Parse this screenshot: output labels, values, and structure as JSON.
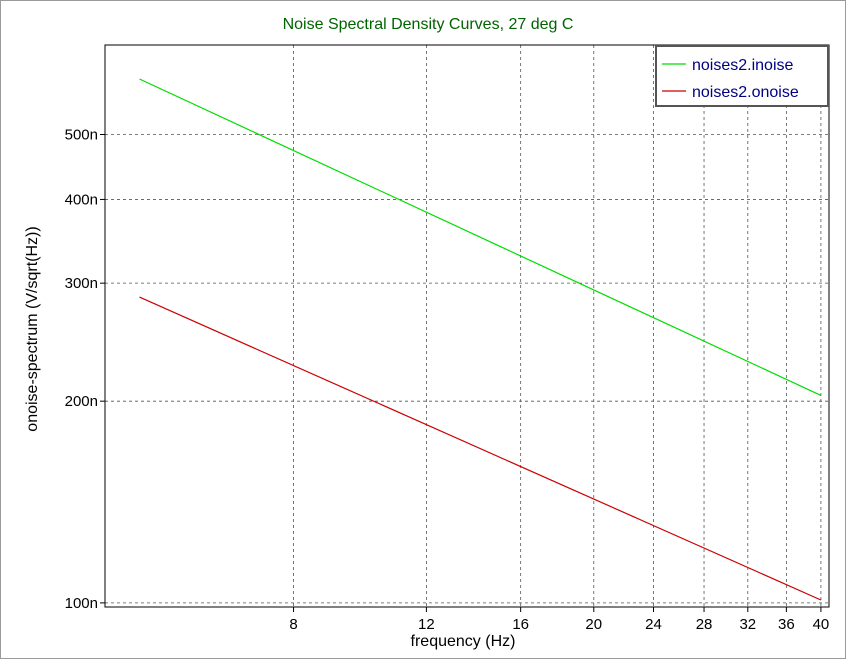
{
  "chart_data": {
    "type": "line",
    "title": "Noise Spectral Density Curves, 27 deg C",
    "xlabel": "frequency (Hz)",
    "ylabel": "onoise-spectrum (V/sqrt(Hz))",
    "x_scale": "log",
    "y_scale": "log",
    "xlim": [
      4.5,
      41
    ],
    "ylim": [
      9.86e-08,
      6.8e-07
    ],
    "x_ticks": [
      {
        "value": 8,
        "label": "8"
      },
      {
        "value": 12,
        "label": "12"
      },
      {
        "value": 16,
        "label": "16"
      },
      {
        "value": 20,
        "label": "20"
      },
      {
        "value": 24,
        "label": "24"
      },
      {
        "value": 28,
        "label": "28"
      },
      {
        "value": 32,
        "label": "32"
      },
      {
        "value": 36,
        "label": "36"
      },
      {
        "value": 40,
        "label": "40"
      }
    ],
    "y_ticks": [
      {
        "value": 1e-07,
        "label": "100n"
      },
      {
        "value": 2e-07,
        "label": "200n"
      },
      {
        "value": 3e-07,
        "label": "300n"
      },
      {
        "value": 4e-07,
        "label": "400n"
      },
      {
        "value": 5e-07,
        "label": "500n"
      }
    ],
    "grid": true,
    "legend_position": "top-right",
    "series": [
      {
        "name": "noises2.inoise",
        "color": "#00dd00",
        "x": [
          5,
          40
        ],
        "y": [
          6.05e-07,
          2.04e-07
        ]
      },
      {
        "name": "noises2.onoise",
        "color": "#cc0000",
        "x": [
          5,
          40
        ],
        "y": [
          2.86e-07,
          1.01e-07
        ]
      }
    ],
    "title_color": "#006400",
    "legend_text_color": "#000080"
  }
}
